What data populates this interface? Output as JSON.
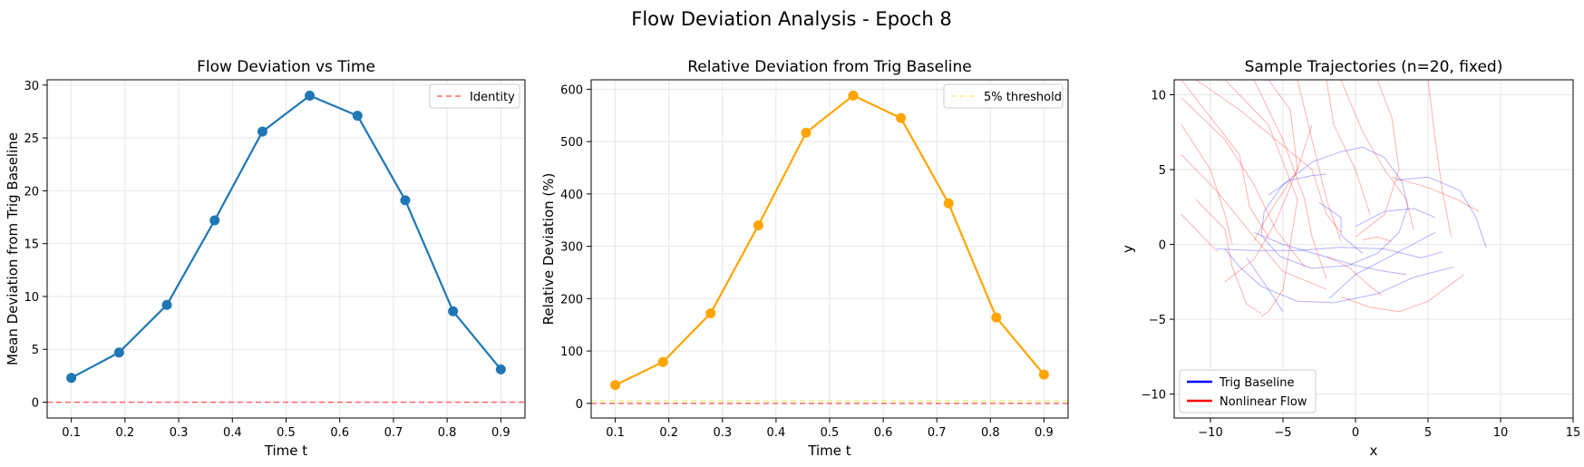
{
  "suptitle": "Flow Deviation Analysis - Epoch 8",
  "chart_data": [
    {
      "type": "line",
      "title": "Flow Deviation vs Time",
      "xlabel": "Time t",
      "ylabel": "Mean Deviation from Trig Baseline",
      "xlim": [
        0.055,
        0.945
      ],
      "ylim": [
        -1.5,
        30.5
      ],
      "xticks": [
        "0.1",
        "0.2",
        "0.3",
        "0.4",
        "0.5",
        "0.6",
        "0.7",
        "0.8",
        "0.9"
      ],
      "yticks": [
        "0",
        "5",
        "10",
        "15",
        "20",
        "25",
        "30"
      ],
      "grid": true,
      "legend_position": "top-right",
      "series": [
        {
          "name": "",
          "color": "#1f77b4",
          "x": [
            0.1,
            0.189,
            0.278,
            0.367,
            0.456,
            0.544,
            0.633,
            0.722,
            0.811,
            0.9
          ],
          "values": [
            2.3,
            4.7,
            9.2,
            17.2,
            25.6,
            29.0,
            27.1,
            19.1,
            8.6,
            3.1
          ]
        }
      ],
      "reference_lines": [
        {
          "name": "Identity",
          "y": 0,
          "color": "#ff6666",
          "style": "dashed"
        }
      ]
    },
    {
      "type": "line",
      "title": "Relative Deviation from Trig Baseline",
      "xlabel": "Time t",
      "ylabel": "Relative Deviation (%)",
      "xlim": [
        0.055,
        0.945
      ],
      "ylim": [
        -28,
        618
      ],
      "xticks": [
        "0.1",
        "0.2",
        "0.3",
        "0.4",
        "0.5",
        "0.6",
        "0.7",
        "0.8",
        "0.9"
      ],
      "yticks": [
        "0",
        "100",
        "200",
        "300",
        "400",
        "500",
        "600"
      ],
      "grid": true,
      "legend_position": "top-right",
      "series": [
        {
          "name": "",
          "color": "#ffa500",
          "x": [
            0.1,
            0.189,
            0.278,
            0.367,
            0.456,
            0.544,
            0.633,
            0.722,
            0.811,
            0.9
          ],
          "values": [
            35,
            79,
            172,
            340,
            517,
            588,
            545,
            382,
            164,
            55
          ]
        }
      ],
      "reference_lines": [
        {
          "name": "5% threshold",
          "y": 5,
          "color": "#ffee88",
          "style": "dashed"
        },
        {
          "name": "",
          "y": 0,
          "color": "#ff6666",
          "style": "dashed"
        }
      ]
    },
    {
      "type": "line",
      "title": "Sample Trajectories (n=20, fixed)",
      "xlabel": "x",
      "ylabel": "y",
      "xlim": [
        -12.5,
        15
      ],
      "ylim": [
        -11.6,
        11
      ],
      "xticks": [
        "−10",
        "−5",
        "0",
        "5",
        "10",
        "15"
      ],
      "yticks": [
        "−10",
        "−5",
        "0",
        "5",
        "10"
      ],
      "grid": true,
      "legend_position": "bottom-left",
      "legend": [
        {
          "name": "Trig Baseline",
          "color": "#0000ff"
        },
        {
          "name": "Nonlinear Flow",
          "color": "#ff0000"
        }
      ],
      "series": [
        {
          "name": "Trig Baseline",
          "color": "#0000ff",
          "points": [
            [
              -5,
              4
            ],
            [
              -3,
              5.5
            ],
            [
              -1,
              6.2
            ],
            [
              0.5,
              6.5
            ],
            [
              2,
              5.8
            ],
            [
              3.2,
              4.2
            ],
            [
              3.6,
              2.5
            ],
            [
              3.0,
              0.8
            ],
            [
              1.5,
              -0.6
            ],
            [
              -0.5,
              -1.4
            ],
            [
              -3,
              -1.6
            ],
            [
              -5.2,
              -0.8
            ],
            [
              -6.5,
              0.6
            ],
            [
              -6.3,
              2.2
            ],
            [
              -5,
              4
            ]
          ]
        },
        {
          "name": "Trig Baseline",
          "color": "#0000ff",
          "points": [
            [
              -9.6,
              -0.3
            ],
            [
              -7,
              -0.4
            ],
            [
              -4,
              -0.4
            ],
            [
              -1,
              -0.2
            ],
            [
              2,
              -0.3
            ],
            [
              4.5,
              -0.9
            ],
            [
              6,
              -0.5
            ]
          ]
        },
        {
          "name": "Trig Baseline",
          "color": "#0000ff",
          "points": [
            [
              -7,
              0.8
            ],
            [
              -5,
              0
            ],
            [
              -2.5,
              -0.7
            ],
            [
              0,
              -1.4
            ],
            [
              2,
              -1.8
            ],
            [
              3.5,
              -2
            ]
          ]
        },
        {
          "name": "Trig Baseline",
          "color": "#0000ff",
          "points": [
            [
              -9,
              -0.3
            ],
            [
              -8,
              -1.5
            ],
            [
              -6.5,
              -2.8
            ],
            [
              -4,
              -3.8
            ],
            [
              -1.5,
              -3.9
            ],
            [
              1.5,
              -3.3
            ],
            [
              4,
              -2.2
            ],
            [
              6.8,
              -1.5
            ]
          ]
        },
        {
          "name": "Trig Baseline",
          "color": "#0000ff",
          "points": [
            [
              2.8,
              4.3
            ],
            [
              5,
              4.5
            ],
            [
              7.2,
              3.6
            ],
            [
              8.3,
              1.8
            ],
            [
              9,
              -0.2
            ]
          ]
        },
        {
          "name": "Trig Baseline",
          "color": "#0000ff",
          "points": [
            [
              -7.5,
              -0.9
            ],
            [
              -6,
              -3
            ],
            [
              -5,
              -4.5
            ]
          ]
        },
        {
          "name": "Trig Baseline",
          "color": "#0000ff",
          "points": [
            [
              -6,
              3.3
            ],
            [
              -4.5,
              4.3
            ],
            [
              -3,
              4.6
            ],
            [
              -2,
              4.7
            ]
          ]
        },
        {
          "name": "Trig Baseline",
          "color": "#0000ff",
          "points": [
            [
              0,
              1.2
            ],
            [
              2,
              2.2
            ],
            [
              4,
              2.4
            ],
            [
              5.5,
              1.8
            ]
          ]
        },
        {
          "name": "Trig Baseline",
          "color": "#0000ff",
          "points": [
            [
              -2.5,
              2.8
            ],
            [
              -1,
              1.8
            ],
            [
              -1,
              0.6
            ],
            [
              0.5,
              -0.6
            ]
          ]
        },
        {
          "name": "Trig Baseline",
          "color": "#0000ff",
          "points": [
            [
              -1.8,
              -3.6
            ],
            [
              0,
              -2
            ],
            [
              2,
              -1
            ],
            [
              5.5,
              0.8
            ]
          ]
        },
        {
          "name": "Nonlinear Flow",
          "color": "#ff0000",
          "points": [
            [
              -9,
              11
            ],
            [
              -6,
              8
            ],
            [
              -4,
              3
            ],
            [
              -5,
              -3
            ],
            [
              -6,
              -4.5
            ],
            [
              -6.5,
              -4.8
            ]
          ]
        },
        {
          "name": "Nonlinear Flow",
          "color": "#ff0000",
          "points": [
            [
              -12,
              9.8
            ],
            [
              -9,
              7
            ],
            [
              -7,
              4
            ],
            [
              -5.5,
              1
            ],
            [
              -3.5,
              -1.5
            ]
          ]
        },
        {
          "name": "Nonlinear Flow",
          "color": "#ff0000",
          "points": [
            [
              -12,
              6
            ],
            [
              -9.5,
              3.5
            ],
            [
              -7,
              0.5
            ],
            [
              -5,
              -1.8
            ],
            [
              -2,
              -3
            ]
          ]
        },
        {
          "name": "Nonlinear Flow",
          "color": "#ff0000",
          "points": [
            [
              -11,
              11
            ],
            [
              -8,
              9
            ],
            [
              -5.5,
              7
            ],
            [
              -3,
              5
            ],
            [
              -2,
              2
            ],
            [
              -1,
              0.8
            ]
          ]
        },
        {
          "name": "Nonlinear Flow",
          "color": "#ff0000",
          "points": [
            [
              -12,
              2
            ],
            [
              -10.5,
              0.5
            ],
            [
              -9.5,
              -0.5
            ]
          ]
        },
        {
          "name": "Nonlinear Flow",
          "color": "#ff0000",
          "points": [
            [
              -7,
              11
            ],
            [
              -5,
              7
            ],
            [
              -3.5,
              3
            ],
            [
              -3,
              0.5
            ],
            [
              -2,
              -2.3
            ]
          ]
        },
        {
          "name": "Nonlinear Flow",
          "color": "#ff0000",
          "points": [
            [
              -4,
              11
            ],
            [
              -3,
              7
            ],
            [
              -2,
              3
            ],
            [
              -1,
              0.2
            ]
          ]
        },
        {
          "name": "Nonlinear Flow",
          "color": "#ff0000",
          "points": [
            [
              -2,
              11
            ],
            [
              -1.5,
              8
            ],
            [
              0,
              5
            ],
            [
              1,
              2
            ]
          ]
        },
        {
          "name": "Nonlinear Flow",
          "color": "#ff0000",
          "points": [
            [
              -6,
              11
            ],
            [
              -4.5,
              9
            ],
            [
              -4,
              5
            ],
            [
              -5.5,
              1.5
            ],
            [
              -7,
              -1
            ],
            [
              -9,
              -2.5
            ]
          ]
        },
        {
          "name": "Nonlinear Flow",
          "color": "#ff0000",
          "points": [
            [
              -12,
              11
            ],
            [
              -10,
              8.5
            ],
            [
              -8,
              6
            ],
            [
              -7.3,
              2.5
            ],
            [
              -6,
              0.5
            ]
          ]
        },
        {
          "name": "Nonlinear Flow",
          "color": "#ff0000",
          "points": [
            [
              -1,
              11
            ],
            [
              0.5,
              7.5
            ],
            [
              2,
              5
            ],
            [
              3.5,
              3
            ],
            [
              4,
              1
            ]
          ]
        },
        {
          "name": "Nonlinear Flow",
          "color": "#ff0000",
          "points": [
            [
              5,
              11
            ],
            [
              5.5,
              7
            ],
            [
              6,
              3.5
            ],
            [
              6.6,
              0.5
            ]
          ]
        },
        {
          "name": "Nonlinear Flow",
          "color": "#ff0000",
          "points": [
            [
              2.5,
              4.5
            ],
            [
              5,
              3.8
            ],
            [
              7,
              3
            ],
            [
              8.5,
              2.2
            ]
          ]
        },
        {
          "name": "Nonlinear Flow",
          "color": "#ff0000",
          "points": [
            [
              -1,
              -3.5
            ],
            [
              1,
              -4.2
            ],
            [
              3,
              -4.5
            ],
            [
              5,
              -3.8
            ],
            [
              6.8,
              -2.5
            ],
            [
              7.5,
              -2
            ]
          ]
        },
        {
          "name": "Nonlinear Flow",
          "color": "#ff0000",
          "points": [
            [
              -11,
              3
            ],
            [
              -9,
              1
            ],
            [
              -8.5,
              -1.5
            ],
            [
              -7.5,
              -4
            ],
            [
              -6.5,
              -4.6
            ]
          ]
        },
        {
          "name": "Nonlinear Flow",
          "color": "#ff0000",
          "points": [
            [
              -12,
              8
            ],
            [
              -10,
              5
            ],
            [
              -9,
              2
            ],
            [
              -8.5,
              0
            ]
          ]
        },
        {
          "name": "Nonlinear Flow",
          "color": "#ff0000",
          "points": [
            [
              -3,
              8
            ],
            [
              -4,
              5
            ],
            [
              -6,
              2
            ],
            [
              -7,
              0.2
            ]
          ]
        },
        {
          "name": "Nonlinear Flow",
          "color": "#ff0000",
          "points": [
            [
              1.5,
              11
            ],
            [
              2.5,
              8.5
            ],
            [
              3,
              5
            ],
            [
              2,
              2
            ],
            [
              0,
              0.5
            ]
          ]
        },
        {
          "name": "Nonlinear Flow",
          "color": "#ff0000",
          "points": [
            [
              0.5,
              0.3
            ],
            [
              1.5,
              0.5
            ],
            [
              2.5,
              0.2
            ]
          ]
        },
        {
          "name": "Nonlinear Flow",
          "color": "#ff0000",
          "points": [
            [
              -2,
              -0.8
            ],
            [
              -0.5,
              -1.5
            ],
            [
              1,
              -2.8
            ],
            [
              1.8,
              -3.4
            ]
          ]
        }
      ]
    }
  ]
}
